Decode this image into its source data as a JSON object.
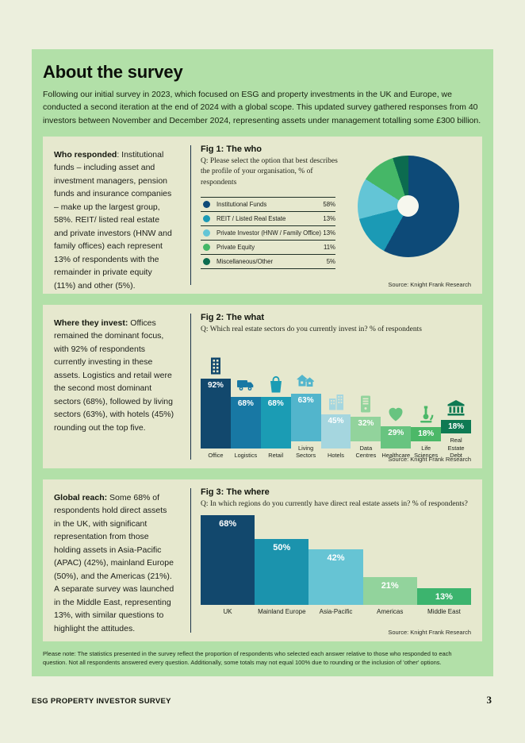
{
  "page": {
    "title": "About the survey",
    "intro": "Following our initial survey in 2023, which focused on ESG and property investments in the UK and Europe, we conducted a second iteration at the end of 2024 with a global scope. This updated survey gathered responses from 40 investors between November and December 2024, representing assets under management totalling some £300 billion.",
    "note": "Please note: The statistics presented in the survey reflect the proportion of respondents who selected each answer relative to those who responded to each question. Not all respondents answered every question. Additionally, some totals may not equal 100% due to rounding or the inclusion of 'other' options.",
    "footer_left": "ESG PROPERTY INVESTOR SURVEY",
    "page_number": "3"
  },
  "colors": {
    "page_bg": "#ecefdd",
    "panel_green": "#b2e0a8",
    "section_cream": "#e6e8ce",
    "navy": "#12486d",
    "dark_green": "#0e7a53"
  },
  "sections": [
    {
      "lead": "Who responded",
      "body": ": Institutional funds – including asset and investment managers, pension funds and insurance companies – make up the largest group, 58%. REIT/ listed real estate and private investors (HNW and family offices) each represent 13% of respondents with the remainder in private equity (11%) and other (5%)."
    },
    {
      "lead": "Where they invest:",
      "body": " Offices remained the dominant focus, with 92% of respondents currently investing in these assets. Logistics and retail were the second most dominant sectors (68%), followed by living sectors (63%), with hotels (45%) rounding out the top five."
    },
    {
      "lead": "Global reach:",
      "body": " Some 68% of respondents hold direct assets in the UK, with significant representation from those holding assets in Asia-Pacific (APAC) (42%), mainland Europe (50%), and the Americas (21%). A separate survey was launched in the Middle East, representing 13%, with similar questions to highlight the attitudes."
    }
  ],
  "chart_data": [
    {
      "type": "pie",
      "fig_label": "Fig 1: The who",
      "question": "Q: Please select the option that best describes the profile of your organisation, % of respondents",
      "source": "Source: Knight Frank Research",
      "donut": true,
      "hole_color": "#f6f7ee",
      "segments": [
        {
          "label": "Institutional Funds",
          "value": 58,
          "value_label": "58%",
          "color": "#0d4a78"
        },
        {
          "label": "REIT / Listed Real Estate",
          "value": 13,
          "value_label": "13%",
          "color": "#1b9ab5"
        },
        {
          "label": "Private Investor (HNW / Family Office)",
          "value": 13,
          "value_label": "13%",
          "color": "#63c5d6"
        },
        {
          "label": "Private Equity",
          "value": 11,
          "value_label": "11%",
          "color": "#45b767"
        },
        {
          "label": "Miscellaneous/Other",
          "value": 5,
          "value_label": "5%",
          "color": "#0c6b4f"
        }
      ]
    },
    {
      "type": "bar",
      "fig_label": "Fig 2: The what",
      "question": "Q: Which real estate sectors do you currently invest in? % of respondents",
      "source": "Source: Knight Frank Research",
      "ylim": [
        0,
        100
      ],
      "categories": [
        "Office",
        "Logistics",
        "Retail",
        "Living Sectors",
        "Hotels",
        "Data Centres",
        "Healthcare",
        "Life Sciences",
        "Real Estate Debt"
      ],
      "values": [
        92,
        68,
        68,
        63,
        45,
        32,
        29,
        18,
        18
      ],
      "value_labels": [
        "92%",
        "68%",
        "68%",
        "63%",
        "45%",
        "32%",
        "29%",
        "18%",
        "18%"
      ],
      "colors": [
        "#12486d",
        "#1878a4",
        "#1b9cb4",
        "#52b5cc",
        "#a5d6df",
        "#92d39c",
        "#68c480",
        "#4cb868",
        "#0e7a53"
      ],
      "icons": [
        "office-icon",
        "truck-icon",
        "shopping-bag-icon",
        "houses-icon",
        "hotel-icon",
        "server-icon",
        "heart-icon",
        "microscope-icon",
        "bank-icon"
      ]
    },
    {
      "type": "bar",
      "fig_label": "Fig 3: The where",
      "question": "Q: In which regions do you currently have direct real estate assets in? % of respondents?",
      "source": "Source: Knight Frank Research",
      "ylim": [
        0,
        100
      ],
      "categories": [
        "UK",
        "Mainland Europe",
        "Asia-Pacific",
        "Americas",
        "Middle East"
      ],
      "values": [
        68,
        50,
        42,
        21,
        13
      ],
      "value_labels": [
        "68%",
        "50%",
        "42%",
        "21%",
        "13%"
      ],
      "colors": [
        "#12486d",
        "#1b93ad",
        "#66c4d4",
        "#92d39c",
        "#3cb46e"
      ]
    }
  ]
}
